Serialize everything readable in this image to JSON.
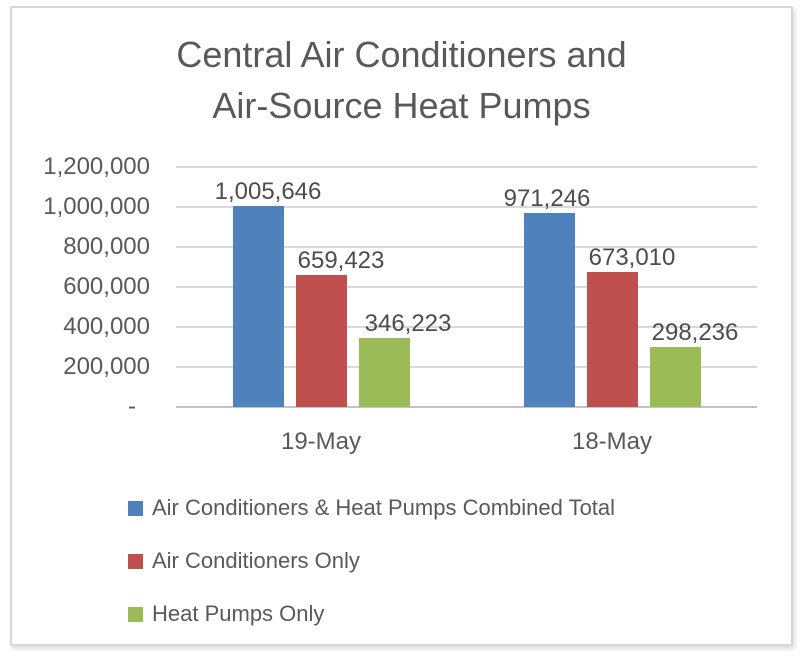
{
  "chart_data": {
    "type": "bar",
    "title": "Central Air Conditioners and Air-Source Heat Pumps",
    "title_lines": [
      "Central Air Conditioners and",
      "Air-Source Heat Pumps"
    ],
    "categories": [
      "19-May",
      "18-May"
    ],
    "series": [
      {
        "name": "Air Conditioners & Heat Pumps Combined Total",
        "slug": "combined-total",
        "color": "#4F81BD",
        "values": [
          1005646,
          971246
        ],
        "value_labels": [
          "1,005,646",
          "971,246"
        ]
      },
      {
        "name": "Air Conditioners Only",
        "slug": "air-conditioners-only",
        "color": "#C0504D",
        "values": [
          659423,
          673010
        ],
        "value_labels": [
          "659,423",
          "673,010"
        ]
      },
      {
        "name": "Heat Pumps Only",
        "slug": "heat-pumps-only",
        "color": "#9BBB59",
        "values": [
          346223,
          298236
        ],
        "value_labels": [
          "346,223",
          "298,236"
        ]
      }
    ],
    "y_axis": {
      "min": 0,
      "max": 1200000,
      "step": 200000,
      "tick_labels": [
        "1,200,000",
        "1,000,000",
        "800,000",
        "600,000",
        "400,000",
        "200,000",
        "-"
      ]
    },
    "grid": true,
    "legend_position": "bottom-left",
    "colors": {
      "text": "#595959",
      "data_label_text": "#4C4C4C",
      "gridline": "#D9D9D9",
      "axis_line": "#C3C3C3",
      "frame_border": "#D6D6D6",
      "background": "#FFFFFF"
    }
  }
}
